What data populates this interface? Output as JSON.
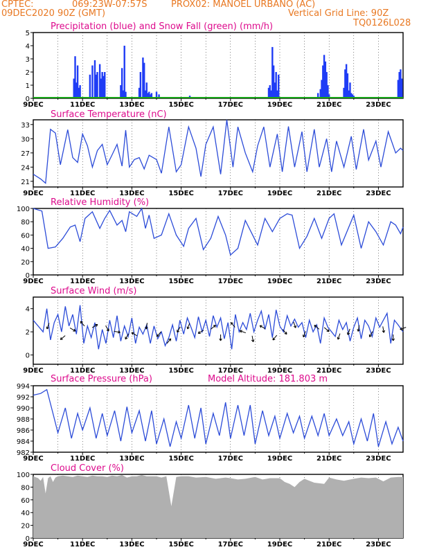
{
  "header": {
    "line1_left": "CPTEC:",
    "line1_coords": "069:23W-07:57S",
    "line1_station": "PROX02: MANOEL URBANO (AC)",
    "line2_left": "09DEC2020 90Z (GMT)",
    "line2_right": "Vertical Grid Line: 90Z",
    "line3_right": "TQ0126L028"
  },
  "colors": {
    "title": "#dd0a8c",
    "header": "#e87822",
    "precip": "#1f3cf5",
    "snow": "#16a516",
    "line": "#2b4bd8",
    "cloud": "#b0b0b0",
    "arrow": "#000000"
  },
  "x_ticks": [
    "9DEC",
    "11DEC",
    "13DEC",
    "15DEC",
    "17DEC",
    "19DEC",
    "21DEC",
    "23DEC"
  ],
  "chart_data": [
    {
      "type": "bar",
      "title": "Precipitation (blue) and Snow Fall (green) (mm/h)",
      "xlabel": "",
      "ylabel": "",
      "ylim": [
        0,
        5
      ],
      "yticks": [
        0,
        1,
        2,
        3,
        4,
        5
      ],
      "x_range_days": [
        9,
        24
      ],
      "series": [
        {
          "name": "Precipitation",
          "x": [
            10.65,
            10.7,
            10.75,
            10.8,
            10.85,
            10.9,
            11.3,
            11.4,
            11.5,
            11.55,
            11.6,
            11.7,
            11.75,
            11.8,
            11.85,
            11.9,
            12.55,
            12.6,
            12.65,
            12.7,
            12.75,
            13.3,
            13.35,
            13.45,
            13.5,
            13.55,
            13.6,
            13.65,
            13.7,
            13.75,
            13.8,
            14.0,
            14.1,
            15.35,
            18.55,
            18.6,
            18.65,
            18.7,
            18.75,
            18.8,
            18.85,
            18.9,
            18.95,
            20.55,
            20.65,
            20.7,
            20.75,
            20.8,
            20.85,
            20.9,
            20.95,
            21.0,
            21.6,
            21.65,
            21.7,
            21.75,
            21.8,
            21.85,
            21.9,
            21.95,
            22.0,
            23.8,
            23.85,
            23.9,
            23.95
          ],
          "values": [
            1.5,
            3.2,
            1.2,
            2.5,
            0.8,
            1.0,
            1.8,
            2.5,
            2.9,
            1.8,
            2.0,
            2.6,
            1.5,
            2.0,
            1.7,
            2.0,
            1.0,
            2.3,
            0.6,
            4.0,
            0.5,
            0.8,
            2.0,
            3.1,
            2.7,
            0.6,
            1.2,
            0.4,
            0.5,
            0.3,
            0.4,
            0.5,
            0.3,
            0.2,
            0.8,
            1.0,
            0.6,
            3.9,
            2.5,
            1.2,
            2.0,
            0.6,
            1.8,
            0.4,
            0.7,
            1.4,
            2.5,
            3.3,
            2.8,
            2.0,
            1.0,
            0.3,
            0.8,
            2.2,
            2.6,
            1.9,
            0.6,
            1.2,
            0.4,
            0.3,
            0.2,
            1.4,
            2.0,
            2.2,
            1.5
          ]
        },
        {
          "name": "Snow Fall",
          "x": [
            9.0,
            24.0
          ],
          "values": [
            0.05,
            0.05
          ]
        }
      ]
    },
    {
      "type": "line",
      "title": "Surface Temperature (nC)",
      "ylim": [
        19.8,
        34
      ],
      "yticks": [
        21,
        24,
        27,
        30,
        33
      ],
      "x": [
        9.0,
        9.3,
        9.5,
        9.7,
        9.9,
        10.1,
        10.4,
        10.6,
        10.8,
        11.0,
        11.2,
        11.4,
        11.6,
        11.8,
        12.0,
        12.2,
        12.4,
        12.6,
        12.75,
        12.9,
        13.1,
        13.3,
        13.5,
        13.7,
        14.0,
        14.2,
        14.5,
        14.8,
        15.0,
        15.3,
        15.6,
        15.8,
        16.0,
        16.3,
        16.6,
        16.85,
        17.1,
        17.3,
        17.6,
        17.9,
        18.1,
        18.35,
        18.6,
        18.9,
        19.1,
        19.35,
        19.6,
        19.9,
        20.1,
        20.4,
        20.6,
        20.9,
        21.1,
        21.3,
        21.6,
        21.9,
        22.1,
        22.4,
        22.6,
        22.9,
        23.1,
        23.4,
        23.7,
        23.9,
        24.0
      ],
      "values": [
        22.5,
        21.5,
        20.6,
        32.0,
        31.2,
        24.5,
        31.9,
        26.0,
        25.0,
        31.0,
        28.5,
        24.0,
        27.5,
        28.8,
        24.5,
        26.6,
        28.8,
        24.2,
        31.8,
        24.0,
        25.6,
        26.0,
        23.6,
        26.5,
        25.6,
        22.7,
        32.5,
        23.0,
        24.5,
        32.5,
        28.0,
        22.0,
        28.8,
        32.5,
        22.5,
        34.0,
        24.0,
        32.5,
        27.0,
        23.0,
        28.5,
        32.5,
        24.0,
        31.0,
        23.0,
        32.6,
        24.0,
        31.5,
        23.0,
        32.0,
        24.0,
        30.0,
        23.0,
        29.5,
        24.0,
        30.5,
        23.5,
        32.0,
        25.5,
        29.5,
        24.0,
        31.5,
        27.0,
        28.0,
        27.5
      ]
    },
    {
      "type": "line",
      "title": "Relative Humidity (%)",
      "ylim": [
        0,
        100
      ],
      "yticks": [
        0,
        20,
        40,
        60,
        80,
        100
      ],
      "x": [
        9.0,
        9.35,
        9.6,
        9.9,
        10.2,
        10.5,
        10.7,
        10.9,
        11.1,
        11.4,
        11.7,
        11.9,
        12.1,
        12.4,
        12.6,
        12.75,
        12.9,
        13.2,
        13.4,
        13.55,
        13.7,
        13.9,
        14.2,
        14.5,
        14.8,
        15.1,
        15.3,
        15.6,
        15.9,
        16.2,
        16.5,
        16.8,
        17.0,
        17.3,
        17.6,
        17.9,
        18.1,
        18.4,
        18.7,
        19.0,
        19.3,
        19.5,
        19.8,
        20.1,
        20.4,
        20.7,
        21.0,
        21.2,
        21.5,
        21.8,
        22.0,
        22.3,
        22.6,
        22.9,
        23.2,
        23.5,
        23.7,
        23.9,
        24.0
      ],
      "values": [
        100,
        96,
        40,
        42,
        55,
        72,
        75,
        50,
        85,
        95,
        70,
        85,
        97,
        75,
        82,
        65,
        95,
        88,
        100,
        70,
        90,
        55,
        60,
        92,
        60,
        43,
        70,
        85,
        38,
        55,
        88,
        60,
        30,
        40,
        82,
        60,
        45,
        85,
        65,
        85,
        92,
        90,
        40,
        58,
        85,
        55,
        85,
        92,
        45,
        72,
        90,
        40,
        80,
        65,
        45,
        80,
        75,
        62,
        72
      ]
    },
    {
      "type": "line",
      "title": "Surface Wind (m/s)",
      "ylim": [
        -0.8,
        5
      ],
      "yticks": [
        0,
        2,
        4
      ],
      "x": [
        9.0,
        9.2,
        9.4,
        9.55,
        9.7,
        9.85,
        10.0,
        10.15,
        10.3,
        10.45,
        10.6,
        10.75,
        10.9,
        11.05,
        11.2,
        11.35,
        11.5,
        11.65,
        11.8,
        11.95,
        12.1,
        12.25,
        12.4,
        12.55,
        12.7,
        12.85,
        13.0,
        13.15,
        13.3,
        13.45,
        13.6,
        13.75,
        13.9,
        14.05,
        14.2,
        14.35,
        14.5,
        14.65,
        14.8,
        14.95,
        15.1,
        15.25,
        15.4,
        15.55,
        15.7,
        15.85,
        16.0,
        16.15,
        16.3,
        16.45,
        16.6,
        16.75,
        16.9,
        17.05,
        17.2,
        17.35,
        17.5,
        17.65,
        17.8,
        17.95,
        18.1,
        18.25,
        18.4,
        18.55,
        18.7,
        18.85,
        19.0,
        19.15,
        19.3,
        19.45,
        19.6,
        19.75,
        19.9,
        20.05,
        20.2,
        20.35,
        20.5,
        20.65,
        20.8,
        20.95,
        21.1,
        21.25,
        21.4,
        21.55,
        21.7,
        21.85,
        22.0,
        22.15,
        22.3,
        22.45,
        22.6,
        22.75,
        22.9,
        23.05,
        23.2,
        23.35,
        23.5,
        23.65,
        23.8,
        24.0
      ],
      "values": [
        3.0,
        2.5,
        2.0,
        4.0,
        1.3,
        2.8,
        3.5,
        2.0,
        4.2,
        2.5,
        3.5,
        1.8,
        4.3,
        1.0,
        2.5,
        1.5,
        2.8,
        0.5,
        2.2,
        1.0,
        3.0,
        1.5,
        3.4,
        1.2,
        2.5,
        1.6,
        3.2,
        1.0,
        2.4,
        1.8,
        2.6,
        1.0,
        2.5,
        1.4,
        2.0,
        0.8,
        1.5,
        2.6,
        1.2,
        3.0,
        1.8,
        3.2,
        2.4,
        1.5,
        3.3,
        2.0,
        3.0,
        1.6,
        3.4,
        2.4,
        3.2,
        1.4,
        2.8,
        0.5,
        3.5,
        2.0,
        2.8,
        2.2,
        3.6,
        2.0,
        3.0,
        3.8,
        2.2,
        3.5,
        1.5,
        3.9,
        2.5,
        2.0,
        3.4,
        2.5,
        3.1,
        2.4,
        2.8,
        1.5,
        3.0,
        2.0,
        2.6,
        1.0,
        3.2,
        2.4,
        2.0,
        1.6,
        3.0,
        2.2,
        2.8,
        1.2,
        2.4,
        3.2,
        1.4,
        3.0,
        2.5,
        1.6,
        3.2,
        2.4,
        3.0,
        3.6,
        1.0,
        3.0,
        2.6,
        2.0
      ]
    },
    {
      "type": "line",
      "title": "Surface Pressure (hPa)",
      "annotation": "Model Altitude: 181.803 m",
      "ylim": [
        982,
        994
      ],
      "yticks": [
        982,
        984,
        986,
        988,
        990,
        992,
        994
      ],
      "x": [
        9.0,
        9.3,
        9.55,
        9.8,
        10.0,
        10.3,
        10.55,
        10.8,
        11.0,
        11.3,
        11.55,
        11.8,
        12.0,
        12.3,
        12.55,
        12.8,
        13.0,
        13.3,
        13.55,
        13.8,
        14.0,
        14.3,
        14.55,
        14.8,
        15.0,
        15.3,
        15.55,
        15.8,
        16.0,
        16.3,
        16.55,
        16.8,
        17.0,
        17.3,
        17.55,
        17.8,
        18.0,
        18.3,
        18.55,
        18.8,
        19.0,
        19.3,
        19.55,
        19.8,
        20.0,
        20.3,
        20.55,
        20.8,
        21.0,
        21.3,
        21.55,
        21.8,
        22.0,
        22.3,
        22.55,
        22.8,
        23.0,
        23.3,
        23.55,
        23.8,
        24.0
      ],
      "values": [
        992.3,
        992.6,
        993.3,
        989.0,
        985.5,
        990.0,
        984.5,
        989.0,
        986.0,
        990.0,
        984.5,
        989.0,
        985.0,
        989.5,
        984.0,
        990.2,
        985.5,
        989.5,
        984.0,
        989.5,
        983.5,
        988.0,
        983.0,
        987.5,
        984.5,
        990.5,
        984.5,
        990.0,
        983.5,
        989.0,
        985.0,
        991.0,
        984.5,
        990.5,
        985.0,
        990.5,
        983.5,
        989.5,
        985.0,
        988.5,
        984.5,
        989.0,
        985.5,
        988.5,
        984.5,
        988.5,
        985.0,
        989.0,
        985.0,
        988.0,
        985.0,
        987.5,
        983.5,
        988.0,
        984.0,
        989.0,
        983.0,
        987.5,
        983.5,
        986.5,
        984.0
      ]
    },
    {
      "type": "area",
      "title": "Cloud Cover (%)",
      "ylim": [
        0,
        100
      ],
      "yticks": [
        0,
        20,
        40,
        60,
        80,
        100
      ],
      "x": [
        9.0,
        9.2,
        9.3,
        9.4,
        9.5,
        9.6,
        9.7,
        9.8,
        9.9,
        10.0,
        10.2,
        10.4,
        10.6,
        10.8,
        11.0,
        11.2,
        11.4,
        11.6,
        11.8,
        12.0,
        12.2,
        12.4,
        12.6,
        12.8,
        13.0,
        13.2,
        13.4,
        13.6,
        13.8,
        14.0,
        14.2,
        14.4,
        14.6,
        14.8,
        15.0,
        15.3,
        15.6,
        16.0,
        16.4,
        16.8,
        17.0,
        17.3,
        17.6,
        18.0,
        18.3,
        18.6,
        19.0,
        19.2,
        19.4,
        19.6,
        19.8,
        20.0,
        20.2,
        20.4,
        20.6,
        20.8,
        21.0,
        21.3,
        21.6,
        22.0,
        22.3,
        22.6,
        22.9,
        23.2,
        23.5,
        23.8,
        24.0
      ],
      "values": [
        97,
        94,
        90,
        96,
        70,
        94,
        97,
        88,
        95,
        97,
        98,
        97,
        96,
        98,
        97,
        96,
        98,
        97,
        97,
        96,
        98,
        97,
        99,
        95,
        97,
        97,
        99,
        97,
        97,
        97,
        95,
        97,
        50,
        96,
        97,
        97,
        95,
        96,
        93,
        95,
        94,
        92,
        93,
        96,
        92,
        94,
        94,
        88,
        85,
        80,
        88,
        93,
        90,
        87,
        86,
        85,
        95,
        92,
        90,
        93,
        95,
        94,
        95,
        89,
        95,
        96,
        96
      ]
    },
    {
      "type": "scatter",
      "title": "Wind vectors",
      "x": [
        9.6,
        10.2,
        10.6,
        11.0,
        11.5,
        12.0,
        12.4,
        12.8,
        13.1,
        13.6,
        14.1,
        14.5,
        14.9,
        15.3,
        15.8,
        16.3,
        16.6,
        17.1,
        17.5,
        17.9,
        18.3,
        18.8,
        19.2,
        19.6,
        20.0,
        20.5,
        20.9,
        21.4,
        21.8,
        22.2,
        22.7,
        23.2,
        23.6,
        24.0
      ],
      "values": [
        2.5,
        1.5,
        2.2,
        2.7,
        2.5,
        2.3,
        2.0,
        1.6,
        1.8,
        2.5,
        1.8,
        1.2,
        2.2,
        2.5,
        2.0,
        2.4,
        1.5,
        2.6,
        2.0,
        1.4,
        2.4,
        1.5,
        2.0,
        2.6,
        1.8,
        2.4,
        2.2,
        1.6,
        2.0,
        2.3,
        1.8,
        2.2,
        1.5,
        2.3
      ],
      "direction_deg": [
        200,
        230,
        120,
        320,
        60,
        150,
        100,
        210,
        300,
        190,
        220,
        40,
        210,
        200,
        240,
        50,
        180,
        320,
        290,
        170,
        300,
        220,
        140,
        160,
        200,
        310,
        130,
        200,
        200,
        190,
        210,
        170,
        180,
        250
      ]
    }
  ]
}
